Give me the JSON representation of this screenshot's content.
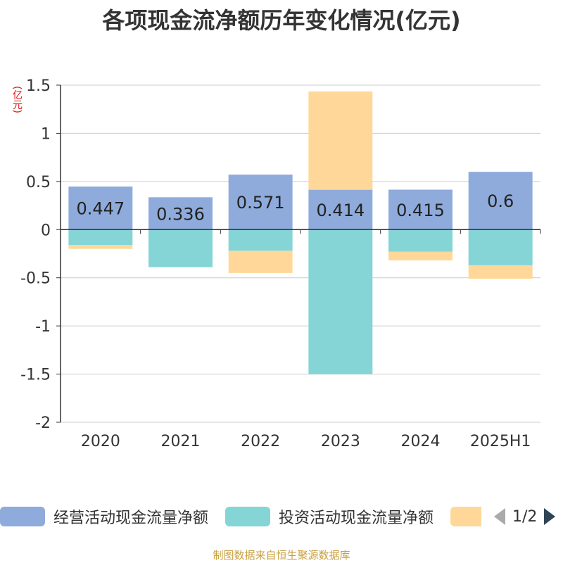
{
  "title": "各项现金流净额历年变化情况(亿元)",
  "unit_label": "(亿元)",
  "source": "制图数据来自恒生聚源数据库",
  "legend": {
    "items": [
      {
        "label": "经营活动现金流量净额",
        "color": "#8eabdb"
      },
      {
        "label": "投资活动现金流量净额",
        "color": "#85d4d6"
      },
      {
        "label": "",
        "color": "#ffd899"
      }
    ],
    "page": "1/2"
  },
  "chart_data": {
    "type": "bar",
    "stacked": true,
    "categories": [
      "2020",
      "2021",
      "2022",
      "2023",
      "2024",
      "2025H1"
    ],
    "series": [
      {
        "name": "经营活动现金流量净额",
        "color": "#8eabdb",
        "values": [
          0.447,
          0.336,
          0.571,
          0.414,
          0.415,
          0.6
        ],
        "labels": [
          "0.447",
          "0.336",
          "0.571",
          "0.414",
          "0.415",
          "0.6"
        ]
      },
      {
        "name": "投资活动现金流量净额",
        "color": "#85d4d6",
        "values": [
          -0.16,
          -0.39,
          -0.22,
          -1.5,
          -0.23,
          -0.37
        ]
      },
      {
        "color": "#ffd899",
        "values": [
          -0.04,
          0,
          -0.23,
          1.02,
          -0.09,
          -0.14
        ]
      }
    ],
    "yticks": [
      "1.5",
      "1",
      "0.5",
      "0",
      "-0.5",
      "-1",
      "-1.5",
      "-2"
    ],
    "ylim": [
      -2,
      1.5
    ],
    "grid": true,
    "legend_position": "bottom"
  }
}
